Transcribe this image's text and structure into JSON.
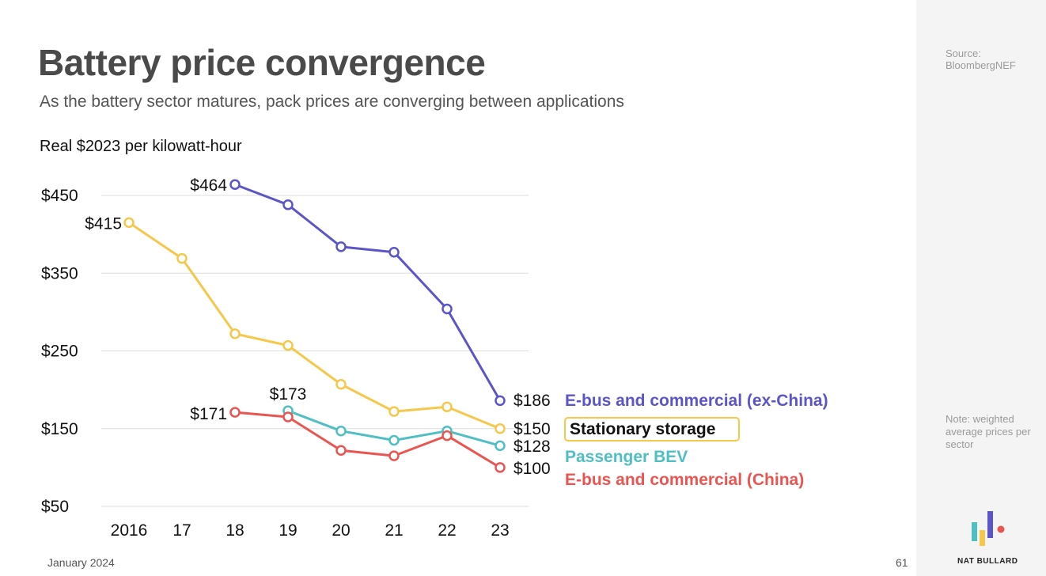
{
  "header": {
    "title": "Battery price convergence",
    "subtitle": "As the battery sector matures, pack prices are converging between applications",
    "unit_label": "Real $2023 per kilowatt-hour"
  },
  "sidebar": {
    "source": "Source: BloombergNEF",
    "note": "Note: weighted average prices per sector",
    "logo_text": "NAT BULLARD"
  },
  "footer": {
    "date": "January 2024",
    "page": "61"
  },
  "chart_data": {
    "type": "line",
    "title": "Battery price convergence",
    "ylabel": "Real $2023 per kilowatt-hour",
    "x": [
      2016,
      2017,
      2018,
      2019,
      2020,
      2021,
      2022,
      2023
    ],
    "xtick_labels": [
      "2016",
      "17",
      "18",
      "19",
      "20",
      "21",
      "22",
      "23"
    ],
    "yticks": [
      50,
      150,
      250,
      350,
      450
    ],
    "ytick_labels": [
      "$50",
      "$150",
      "$250",
      "$350",
      "$450"
    ],
    "ylim": [
      50,
      450
    ],
    "grid": true,
    "series": [
      {
        "name": "E-bus and commercial (ex-China)",
        "color": "#5b55c8",
        "x": [
          2018,
          2019,
          2020,
          2021,
          2022,
          2023
        ],
        "values": [
          464,
          438,
          384,
          377,
          304,
          186
        ],
        "start_label": "$464",
        "end_label": "$186"
      },
      {
        "name": "Stationary storage",
        "color": "#f5c84c",
        "x": [
          2016,
          2017,
          2018,
          2019,
          2020,
          2021,
          2022,
          2023
        ],
        "values": [
          415,
          369,
          272,
          257,
          207,
          172,
          178,
          150
        ],
        "start_label": "$415",
        "end_label": "$150"
      },
      {
        "name": "Passenger BEV",
        "color": "#4fbfc4",
        "x": [
          2019,
          2020,
          2021,
          2022,
          2023
        ],
        "values": [
          173,
          147,
          135,
          147,
          128
        ],
        "start_label": "$173",
        "end_label": "$128"
      },
      {
        "name": "E-bus and commercial (China)",
        "color": "#ea5551",
        "x": [
          2018,
          2019,
          2020,
          2021,
          2022,
          2023
        ],
        "values": [
          171,
          165,
          122,
          115,
          141,
          100
        ],
        "start_label": "$171",
        "end_label": "$100"
      }
    ]
  }
}
